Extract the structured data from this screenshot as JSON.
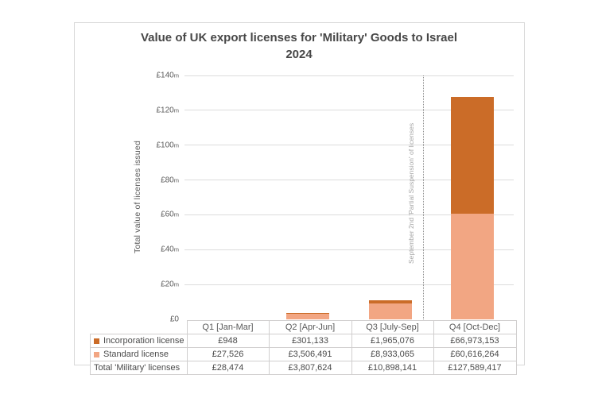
{
  "title": {
    "line1": "Value of UK export licenses for 'Military' Goods to Israel",
    "line2": "2024"
  },
  "chart_data": {
    "type": "bar",
    "stacked": true,
    "title": "Value of UK export licenses for 'Military' Goods to Israel 2024",
    "ylabel": "Total value of licenses issued",
    "xlabel": "",
    "grid": "horizontal",
    "legend_position": "table-left",
    "ylim": [
      0,
      140
    ],
    "ylim_unit": "millions GBP",
    "ytick_values": [
      0,
      20,
      40,
      60,
      80,
      100,
      120,
      140
    ],
    "ytick_labels": [
      "£0",
      "£20m",
      "£40m",
      "£60m",
      "£80m",
      "£100m",
      "£120m",
      "£140m"
    ],
    "categories": [
      "Q1 [Jan-Mar]",
      "Q2 [Apr-Jun]",
      "Q3 [July-Sep]",
      "Q4 [Oct-Dec]"
    ],
    "series": [
      {
        "name": "Standard license",
        "color": "#F2A683",
        "values": [
          27526,
          3506491,
          8933065,
          60616264
        ]
      },
      {
        "name": "Incorporation license",
        "color": "#CB6C28",
        "values": [
          948,
          301133,
          1965076,
          66973153
        ]
      }
    ],
    "totals": [
      28474,
      3807624,
      10898141,
      127589417
    ],
    "annotation": "September 2nd 'Partial Suspension' of licenses",
    "annotation_x_position": "between Q3 and Q4"
  },
  "table": {
    "columns": [
      "Q1 [Jan-Mar]",
      "Q2 [Apr-Jun]",
      "Q3 [July-Sep]",
      "Q4 [Oct-Dec]"
    ],
    "rows": [
      {
        "label": "Incorporation license",
        "swatch": "#CB6C28",
        "values": [
          "£948",
          "£301,133",
          "£1,965,076",
          "£66,973,153"
        ]
      },
      {
        "label": "Standard license",
        "swatch": "#F2A683",
        "values": [
          "£27,526",
          "£3,506,491",
          "£8,933,065",
          "£60,616,264"
        ]
      },
      {
        "label": "Total 'Military' licenses",
        "swatch": null,
        "values": [
          "£28,474",
          "£3,807,624",
          "£10,898,141",
          "£127,589,417"
        ]
      }
    ]
  }
}
